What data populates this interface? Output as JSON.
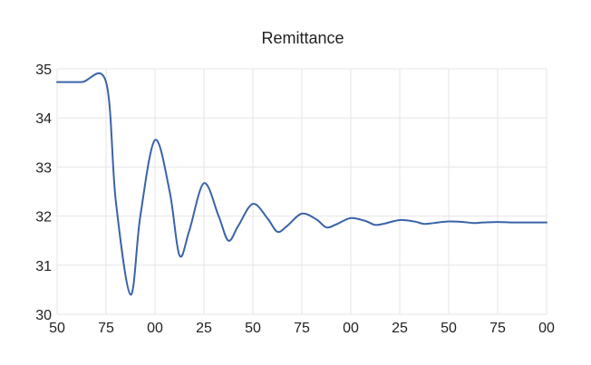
{
  "chart_data": {
    "type": "line",
    "title": "Remittance",
    "xlabel": "",
    "ylabel": "",
    "x_tick_labels": [
      "50",
      "75",
      "00",
      "25",
      "50",
      "75",
      "00",
      "25",
      "50",
      "75",
      "00"
    ],
    "y_tick_labels": [
      "30",
      "31",
      "32",
      "33",
      "34",
      "35"
    ],
    "ylim": [
      30,
      35
    ],
    "grid": true,
    "legend": "none",
    "colors": {
      "series": "#3a63a8",
      "grid": "#e6e6e6"
    },
    "series": [
      {
        "name": "",
        "x": [
          0,
          0.5,
          1.0,
          1.2,
          1.5,
          1.7,
          2.0,
          2.3,
          2.5,
          2.7,
          3.0,
          3.3,
          3.5,
          3.7,
          4.0,
          4.3,
          4.5,
          4.7,
          5.0,
          5.3,
          5.5,
          5.7,
          6.0,
          6.3,
          6.5,
          6.7,
          7.0,
          7.3,
          7.5,
          7.7,
          8.0,
          8.3,
          8.5,
          8.7,
          9.0,
          9.3,
          9.5,
          9.7,
          10.0
        ],
        "values": [
          34.73,
          34.73,
          34.73,
          32.3,
          30.4,
          32.0,
          33.55,
          32.5,
          31.2,
          31.7,
          32.67,
          32.0,
          31.5,
          31.8,
          32.25,
          31.95,
          31.68,
          31.8,
          32.05,
          31.93,
          31.77,
          31.83,
          31.96,
          31.9,
          31.82,
          31.85,
          31.92,
          31.89,
          31.84,
          31.86,
          31.89,
          31.88,
          31.86,
          31.87,
          31.88,
          31.87,
          31.87,
          31.87,
          31.87
        ]
      }
    ]
  }
}
